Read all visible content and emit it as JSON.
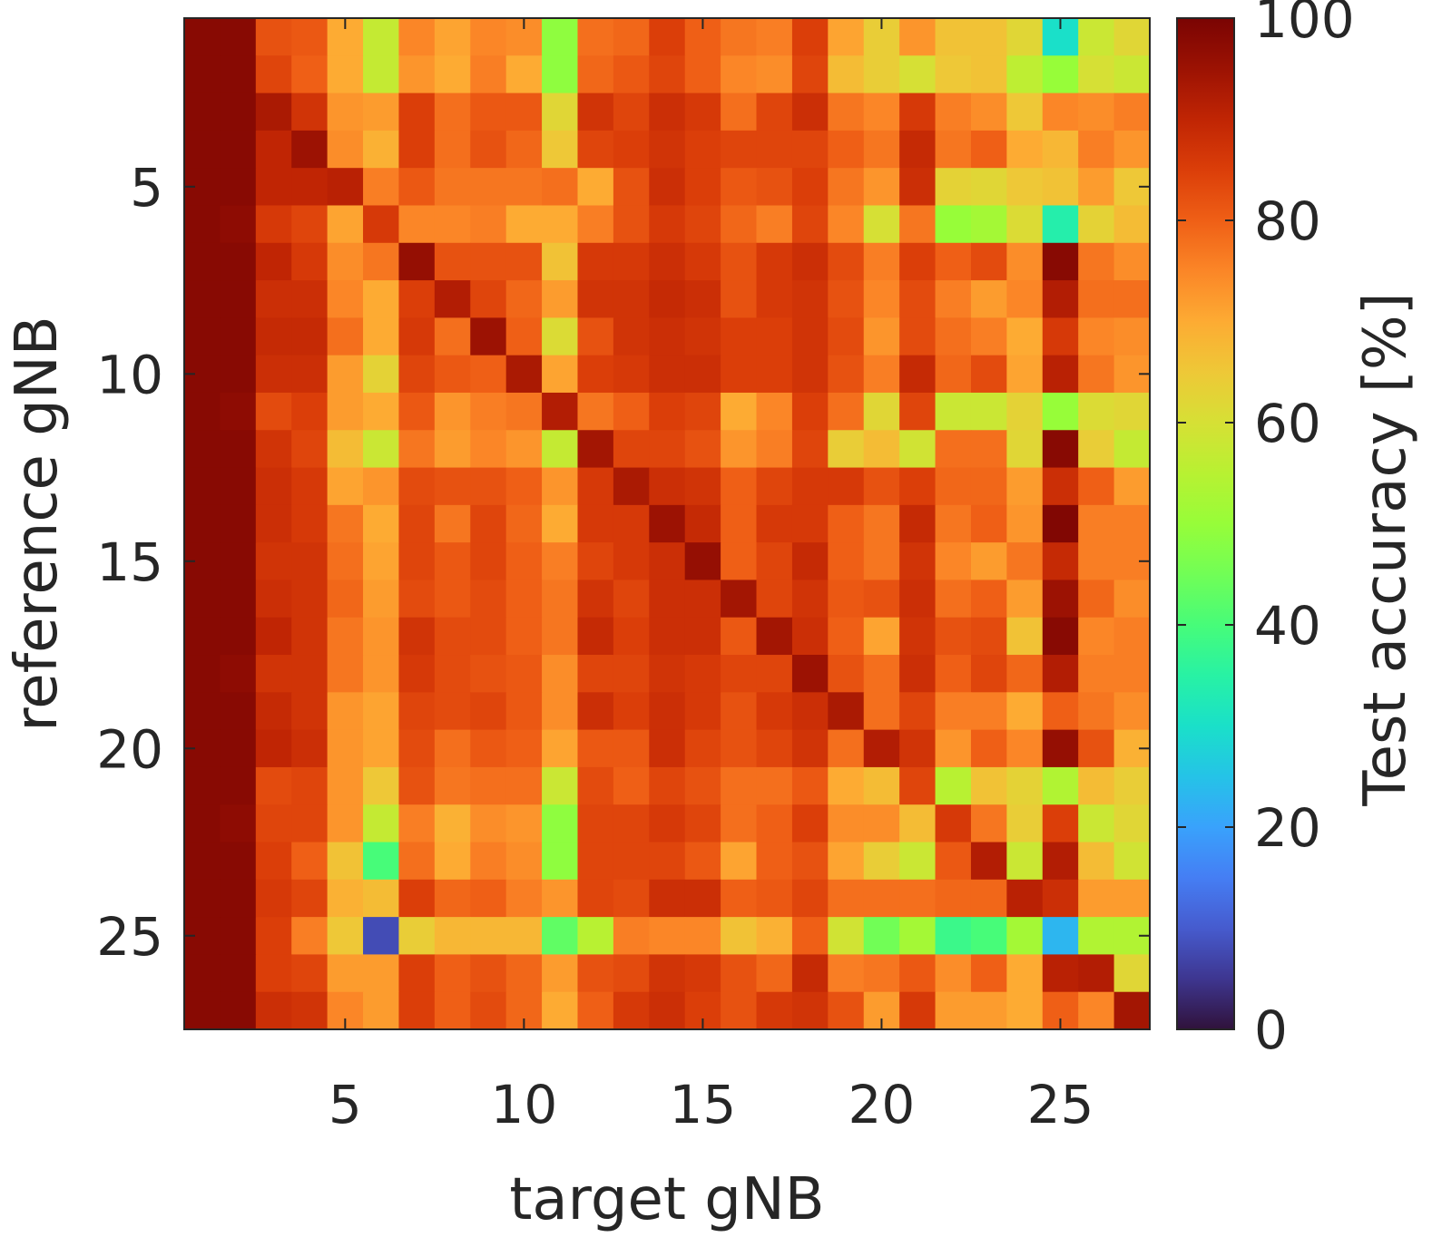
{
  "chart_data": {
    "type": "heatmap",
    "xlabel": "target gNB",
    "ylabel": "reference gNB",
    "x_ticks": [
      5,
      10,
      15,
      20,
      25
    ],
    "y_ticks": [
      5,
      10,
      15,
      20,
      25
    ],
    "x_range": [
      1,
      27
    ],
    "y_range": [
      1,
      27
    ],
    "colorbar": {
      "label": "Test accuracy [%]",
      "range": [
        0,
        100
      ],
      "ticks": [
        0,
        20,
        40,
        60,
        80,
        100
      ],
      "colormap": "turbo"
    },
    "values": [
      [
        98,
        98,
        82,
        81,
        70,
        57,
        75,
        71,
        75,
        74,
        49,
        78,
        79,
        85,
        80,
        77,
        76,
        85,
        71,
        64,
        73,
        66,
        66,
        62,
        30,
        58,
        62
      ],
      [
        98,
        98,
        84,
        80,
        70,
        57,
        73,
        70,
        76,
        70,
        49,
        79,
        81,
        84,
        80,
        75,
        74,
        84,
        67,
        64,
        60,
        65,
        66,
        56,
        50,
        60,
        58
      ],
      [
        98,
        98,
        93,
        87,
        73,
        72,
        85,
        78,
        81,
        81,
        62,
        87,
        84,
        88,
        86,
        78,
        84,
        88,
        77,
        75,
        86,
        76,
        74,
        65,
        75,
        74,
        76
      ],
      [
        98,
        98,
        90,
        95,
        74,
        69,
        85,
        78,
        82,
        79,
        65,
        84,
        85,
        87,
        85,
        84,
        84,
        84,
        80,
        77,
        89,
        77,
        80,
        70,
        68,
        76,
        73
      ],
      [
        98,
        98,
        90,
        90,
        91,
        76,
        81,
        77,
        77,
        77,
        78,
        70,
        82,
        88,
        85,
        81,
        82,
        85,
        77,
        73,
        88,
        63,
        62,
        65,
        66,
        72,
        65
      ],
      [
        98,
        97,
        86,
        84,
        71,
        86,
        75,
        75,
        76,
        70,
        70,
        76,
        82,
        86,
        84,
        79,
        76,
        84,
        75,
        60,
        77,
        50,
        52,
        61,
        34,
        63,
        67
      ],
      [
        98,
        98,
        90,
        86,
        74,
        77,
        96,
        82,
        82,
        82,
        66,
        86,
        86,
        88,
        86,
        82,
        86,
        88,
        83,
        76,
        85,
        80,
        83,
        74,
        98,
        77,
        74
      ],
      [
        98,
        98,
        88,
        88,
        75,
        70,
        85,
        92,
        84,
        79,
        72,
        87,
        87,
        89,
        88,
        82,
        86,
        87,
        82,
        75,
        83,
        76,
        72,
        75,
        92,
        78,
        78
      ],
      [
        98,
        98,
        89,
        89,
        78,
        70,
        86,
        78,
        95,
        80,
        61,
        82,
        87,
        88,
        87,
        85,
        85,
        87,
        83,
        73,
        83,
        78,
        76,
        70,
        86,
        75,
        74
      ],
      [
        98,
        98,
        88,
        88,
        72,
        63,
        84,
        81,
        80,
        93,
        71,
        85,
        86,
        88,
        88,
        85,
        85,
        87,
        82,
        76,
        89,
        79,
        83,
        71,
        91,
        77,
        73
      ],
      [
        98,
        97,
        83,
        85,
        72,
        70,
        81,
        73,
        76,
        77,
        92,
        77,
        80,
        85,
        84,
        70,
        75,
        85,
        78,
        62,
        84,
        58,
        58,
        63,
        50,
        61,
        62
      ],
      [
        98,
        98,
        87,
        84,
        67,
        58,
        77,
        72,
        75,
        73,
        57,
        94,
        84,
        84,
        82,
        73,
        76,
        84,
        64,
        67,
        59,
        78,
        78,
        62,
        98,
        64,
        57
      ],
      [
        98,
        98,
        88,
        86,
        71,
        73,
        83,
        82,
        82,
        80,
        73,
        86,
        93,
        88,
        87,
        80,
        84,
        86,
        86,
        82,
        85,
        79,
        79,
        72,
        88,
        80,
        72
      ],
      [
        98,
        98,
        88,
        86,
        77,
        70,
        84,
        77,
        84,
        79,
        70,
        86,
        86,
        95,
        89,
        80,
        86,
        86,
        80,
        77,
        89,
        77,
        80,
        73,
        99,
        76,
        76
      ],
      [
        98,
        98,
        87,
        87,
        78,
        71,
        84,
        81,
        84,
        80,
        76,
        84,
        86,
        88,
        96,
        80,
        84,
        89,
        80,
        77,
        87,
        75,
        72,
        77,
        89,
        76,
        76
      ],
      [
        98,
        98,
        88,
        87,
        79,
        72,
        83,
        81,
        83,
        80,
        77,
        87,
        84,
        88,
        88,
        94,
        84,
        87,
        81,
        82,
        88,
        78,
        80,
        72,
        95,
        79,
        74
      ],
      [
        98,
        98,
        90,
        87,
        77,
        73,
        87,
        83,
        83,
        80,
        77,
        89,
        85,
        88,
        88,
        81,
        94,
        88,
        80,
        71,
        87,
        82,
        83,
        66,
        98,
        75,
        76
      ],
      [
        98,
        97,
        87,
        87,
        77,
        73,
        86,
        83,
        82,
        81,
        74,
        84,
        84,
        87,
        86,
        84,
        84,
        95,
        82,
        78,
        88,
        80,
        84,
        79,
        92,
        76,
        76
      ],
      [
        98,
        98,
        89,
        87,
        73,
        71,
        84,
        83,
        84,
        81,
        74,
        88,
        85,
        88,
        86,
        82,
        86,
        88,
        93,
        78,
        84,
        76,
        76,
        70,
        80,
        77,
        74
      ],
      [
        98,
        98,
        90,
        88,
        73,
        71,
        83,
        78,
        81,
        80,
        71,
        81,
        81,
        88,
        84,
        82,
        84,
        87,
        78,
        92,
        87,
        73,
        80,
        75,
        96,
        82,
        69
      ],
      [
        98,
        98,
        83,
        84,
        73,
        65,
        82,
        77,
        78,
        78,
        58,
        83,
        80,
        84,
        82,
        78,
        78,
        81,
        70,
        67,
        84,
        55,
        66,
        63,
        54,
        67,
        64
      ],
      [
        98,
        97,
        84,
        84,
        73,
        57,
        76,
        69,
        74,
        73,
        49,
        84,
        84,
        86,
        84,
        78,
        80,
        85,
        74,
        74,
        67,
        86,
        77,
        64,
        85,
        58,
        62
      ],
      [
        98,
        98,
        85,
        80,
        66,
        40,
        78,
        70,
        76,
        74,
        49,
        84,
        84,
        84,
        81,
        71,
        80,
        82,
        71,
        64,
        58,
        81,
        92,
        58,
        92,
        67,
        59
      ],
      [
        98,
        98,
        86,
        84,
        69,
        67,
        85,
        79,
        80,
        76,
        73,
        84,
        83,
        88,
        88,
        80,
        81,
        84,
        78,
        78,
        78,
        79,
        79,
        91,
        88,
        72,
        72
      ],
      [
        98,
        98,
        85,
        76,
        65,
        8,
        64,
        68,
        68,
        68,
        43,
        55,
        76,
        75,
        75,
        66,
        69,
        80,
        59,
        45,
        52,
        38,
        40,
        52,
        23,
        54,
        54
      ],
      [
        98,
        98,
        85,
        84,
        72,
        72,
        85,
        80,
        82,
        79,
        72,
        82,
        83,
        87,
        86,
        82,
        79,
        89,
        76,
        77,
        81,
        74,
        80,
        70,
        91,
        92,
        62
      ],
      [
        98,
        98,
        88,
        87,
        75,
        72,
        85,
        80,
        83,
        79,
        70,
        80,
        86,
        88,
        85,
        82,
        86,
        87,
        82,
        72,
        86,
        72,
        72,
        70,
        80,
        75,
        94
      ]
    ]
  }
}
